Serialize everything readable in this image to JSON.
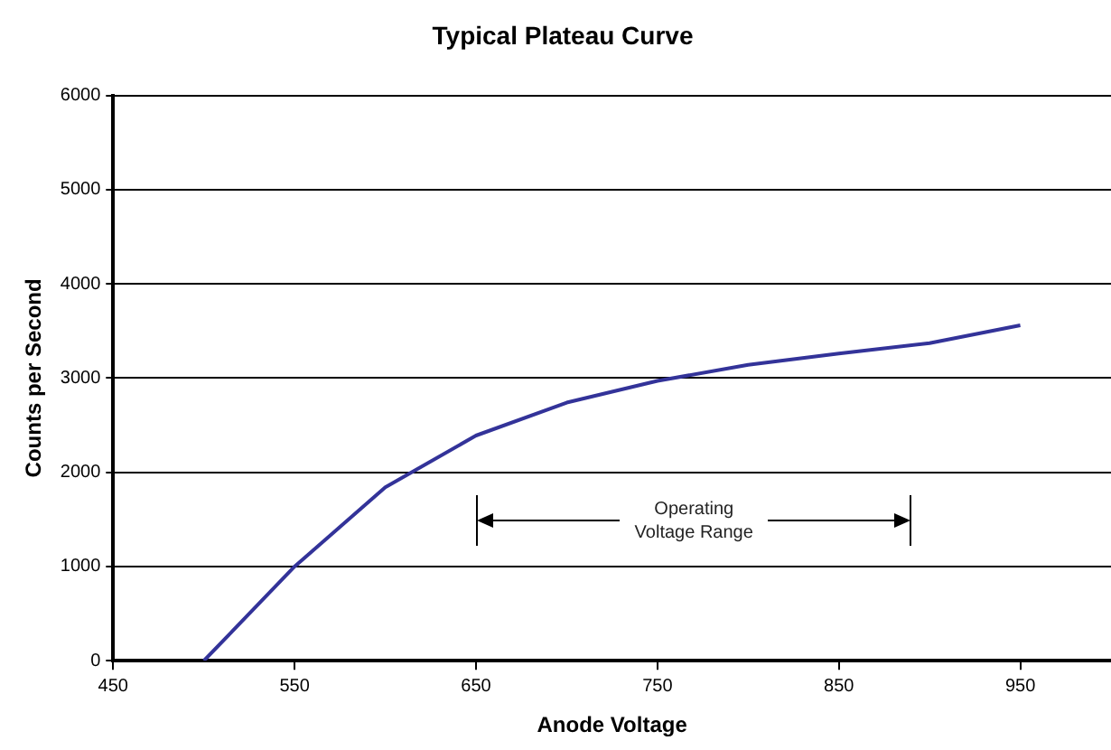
{
  "chart_data": {
    "type": "line",
    "title": "Typical Plateau Curve",
    "xlabel": "Anode Voltage",
    "ylabel": "Counts per Second",
    "x": [
      500,
      550,
      600,
      650,
      700,
      750,
      800,
      850,
      900,
      950
    ],
    "series": [
      {
        "color": "#333399",
        "values": [
          0,
          1000,
          1840,
          2390,
          2740,
          2970,
          3140,
          3260,
          3370,
          3560
        ]
      }
    ],
    "xlim": [
      450,
      1000
    ],
    "xticks": [
      450,
      550,
      650,
      750,
      850,
      950
    ],
    "ylim": [
      0,
      6000
    ],
    "yticks": [
      0,
      1000,
      2000,
      3000,
      4000,
      5000,
      6000
    ],
    "grid": "y",
    "legend": false,
    "marker": "none",
    "line_style": "solid",
    "annotations": [
      "Operating Voltage Range"
    ]
  }
}
